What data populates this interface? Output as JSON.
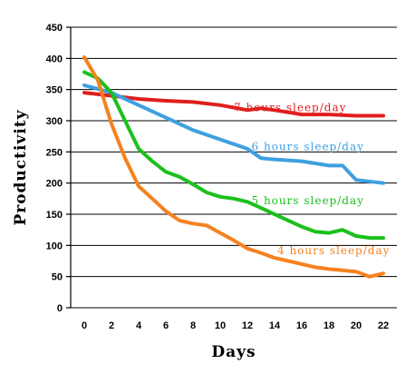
{
  "chart_data": {
    "type": "line",
    "title": "",
    "xlabel": "Days",
    "ylabel": "Productivity",
    "xlim": [
      -1,
      23
    ],
    "ylim": [
      0,
      450
    ],
    "x_ticks": [
      0,
      2,
      4,
      6,
      8,
      10,
      12,
      14,
      16,
      18,
      20,
      22
    ],
    "y_ticks": [
      0,
      50,
      100,
      150,
      200,
      250,
      300,
      350,
      400,
      450
    ],
    "grid": "horizontal",
    "legend": "inline-labels",
    "series": [
      {
        "name": "7 hours sleep/day",
        "color": "#e01e1e",
        "label_at": [
          11,
          315
        ],
        "x": [
          0,
          2,
          4,
          6,
          8,
          10,
          12,
          13,
          14,
          16,
          18,
          20,
          22
        ],
        "values": [
          345,
          340,
          335,
          332,
          330,
          325,
          317,
          320,
          317,
          310,
          310,
          308,
          308
        ]
      },
      {
        "name": "6 hours sleep/day",
        "color": "#3ea0e0",
        "label_at": [
          12.3,
          253
        ],
        "x": [
          0,
          2,
          4,
          6,
          8,
          10,
          12,
          13,
          14,
          16,
          18,
          19,
          20,
          22
        ],
        "values": [
          357,
          345,
          325,
          305,
          285,
          270,
          255,
          240,
          238,
          235,
          228,
          228,
          205,
          200
        ]
      },
      {
        "name": "5 hours sleep/day",
        "color": "#1cc01c",
        "label_at": [
          12.3,
          166
        ],
        "x": [
          0,
          1,
          2,
          3,
          4,
          5,
          6,
          7,
          8,
          9,
          10,
          11,
          12,
          13,
          14,
          15,
          16,
          17,
          18,
          19,
          20,
          21,
          22
        ],
        "values": [
          378,
          368,
          345,
          300,
          255,
          235,
          218,
          210,
          198,
          185,
          178,
          175,
          170,
          160,
          150,
          140,
          130,
          122,
          120,
          125,
          115,
          112,
          112
        ]
      },
      {
        "name": "4 hours sleep/day",
        "color": "#f58220",
        "label_at": [
          14.2,
          86
        ],
        "x": [
          0,
          1,
          2,
          3,
          4,
          5,
          6,
          7,
          8,
          9,
          10,
          11,
          12,
          13,
          14,
          15,
          16,
          17,
          18,
          19,
          20,
          21,
          22
        ],
        "values": [
          402,
          365,
          295,
          240,
          195,
          175,
          155,
          140,
          135,
          132,
          120,
          108,
          95,
          88,
          80,
          75,
          70,
          65,
          62,
          60,
          58,
          50,
          55
        ]
      }
    ]
  }
}
